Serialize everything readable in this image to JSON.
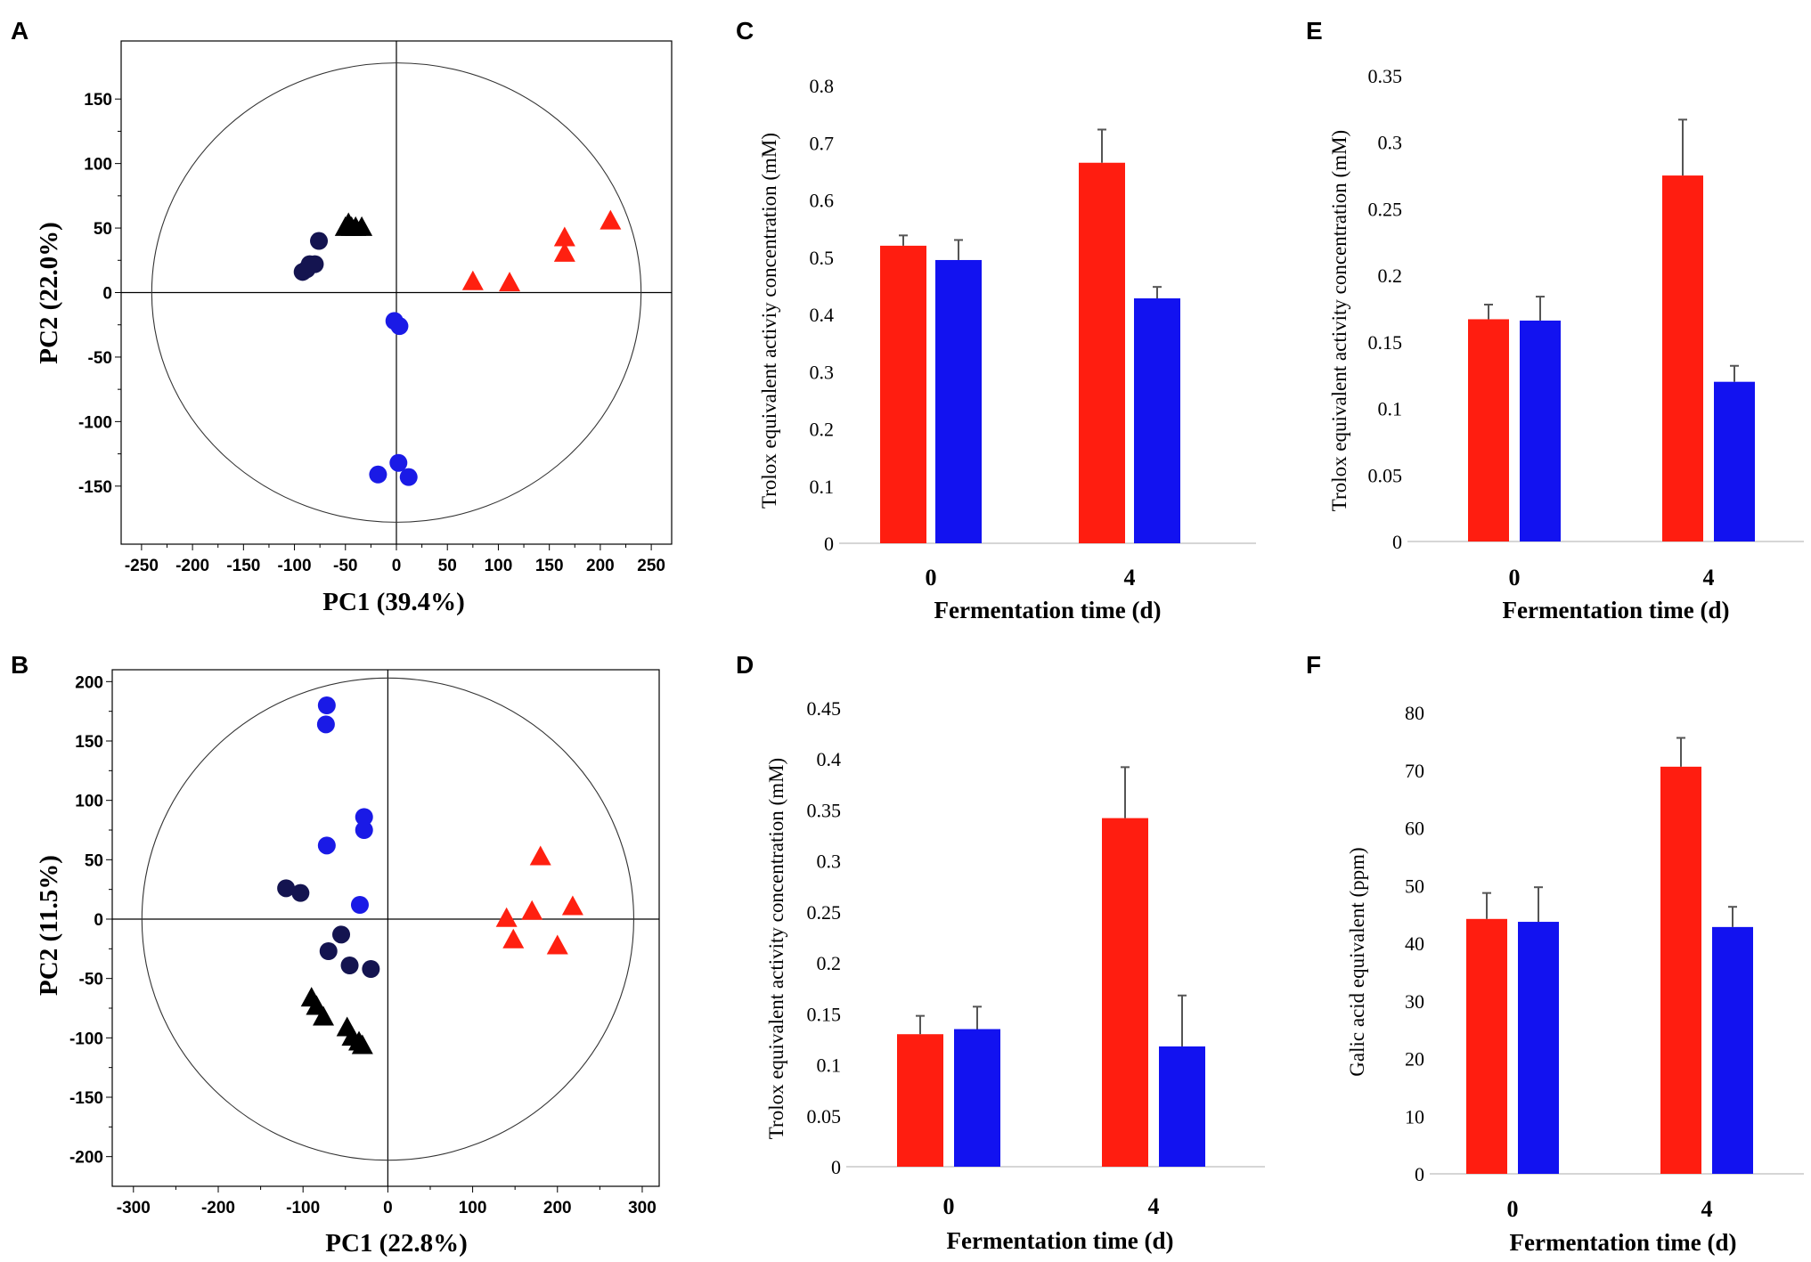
{
  "chart_data": [
    {
      "id": "A",
      "type": "scatter",
      "xlabel": "PC1 (39.4%)",
      "ylabel": "PC2 (22.0%)",
      "xlim": [
        -270,
        270
      ],
      "ylim": [
        -195,
        195
      ],
      "xticks": [
        -250,
        -200,
        -150,
        -100,
        -50,
        0,
        50,
        100,
        150,
        200,
        250
      ],
      "yticks": [
        -150,
        -100,
        -50,
        0,
        50,
        100,
        150
      ],
      "ellipse": {
        "rx": 240,
        "ry": 178
      },
      "series": [
        {
          "name": "group-dark-circles",
          "marker": "circle",
          "color": "#141450",
          "points": [
            [
              -92,
              16
            ],
            [
              -88,
              18
            ],
            [
              -85,
              22
            ],
            [
              -80,
              22
            ],
            [
              -76,
              40
            ]
          ]
        },
        {
          "name": "group-black-triangles",
          "marker": "triangle",
          "color": "#000000",
          "points": [
            [
              -50,
              50
            ],
            [
              -44,
              50
            ],
            [
              -40,
              50
            ],
            [
              -34,
              50
            ],
            [
              -47,
              53
            ]
          ]
        },
        {
          "name": "group-blue-circles",
          "marker": "circle",
          "color": "#1a1ae6",
          "points": [
            [
              -2,
              -22
            ],
            [
              3,
              -26
            ],
            [
              -18,
              -141
            ],
            [
              2,
              -132
            ],
            [
              12,
              -143
            ]
          ]
        },
        {
          "name": "group-red-triangles",
          "marker": "triangle",
          "color": "#ff2010",
          "points": [
            [
              75,
              8
            ],
            [
              111,
              7
            ],
            [
              165,
              42
            ],
            [
              165,
              30
            ],
            [
              210,
              55
            ]
          ]
        }
      ]
    },
    {
      "id": "B",
      "type": "scatter",
      "xlabel": "PC1 (22.8%)",
      "ylabel": "PC2 (11.5%)",
      "xlim": [
        -325,
        320
      ],
      "ylim": [
        -225,
        210
      ],
      "xticks": [
        -300,
        -200,
        -100,
        0,
        100,
        200,
        300
      ],
      "yticks": [
        -200,
        -150,
        -100,
        -50,
        0,
        50,
        100,
        150,
        200
      ],
      "ellipse": {
        "rx": 290,
        "ry": 203
      },
      "series": [
        {
          "name": "group-blue-circles",
          "marker": "circle",
          "color": "#1a1ae6",
          "points": [
            [
              -72,
              180
            ],
            [
              -73,
              164
            ],
            [
              -72,
              62
            ],
            [
              -28,
              86
            ],
            [
              -28,
              75
            ],
            [
              -33,
              12
            ]
          ]
        },
        {
          "name": "group-dark-circles",
          "marker": "circle",
          "color": "#141450",
          "points": [
            [
              -120,
              26
            ],
            [
              -103,
              22
            ],
            [
              -55,
              -13
            ],
            [
              -70,
              -27
            ],
            [
              -45,
              -39
            ],
            [
              -20,
              -42
            ]
          ]
        },
        {
          "name": "group-black-triangles",
          "marker": "triangle",
          "color": "#000000",
          "points": [
            [
              -90,
              -67
            ],
            [
              -84,
              -74
            ],
            [
              -76,
              -83
            ],
            [
              -48,
              -92
            ],
            [
              -42,
              -100
            ],
            [
              -34,
              -104
            ],
            [
              -30,
              -107
            ]
          ]
        },
        {
          "name": "group-red-triangles",
          "marker": "triangle",
          "color": "#ff2010",
          "points": [
            [
              140,
              0
            ],
            [
              148,
              -18
            ],
            [
              170,
              6
            ],
            [
              180,
              52
            ],
            [
              200,
              -23
            ],
            [
              218,
              10
            ]
          ]
        }
      ]
    },
    {
      "id": "C",
      "type": "bar",
      "categories": [
        "0",
        "4"
      ],
      "series": [
        {
          "name": "red",
          "color": "#ff1d10",
          "values": [
            0.52,
            0.665
          ],
          "errors": [
            0.018,
            0.058
          ]
        },
        {
          "name": "blue",
          "color": "#1212f0",
          "values": [
            0.495,
            0.428
          ],
          "errors": [
            0.035,
            0.02
          ]
        }
      ],
      "xlabel": "Fermentation time (d)",
      "ylabel": "Trolox equivalent activiy concentration (mM)",
      "ylim": [
        0,
        0.8
      ],
      "yticks": [
        "0",
        "0.1",
        "0.2",
        "0.3",
        "0.4",
        "0.5",
        "0.6",
        "0.7",
        "0.8"
      ]
    },
    {
      "id": "D",
      "type": "bar",
      "categories": [
        "0",
        "4"
      ],
      "series": [
        {
          "name": "red",
          "color": "#ff1d10",
          "values": [
            0.13,
            0.342
          ],
          "errors": [
            0.018,
            0.05
          ]
        },
        {
          "name": "blue",
          "color": "#1212f0",
          "values": [
            0.135,
            0.118
          ],
          "errors": [
            0.022,
            0.05
          ]
        }
      ],
      "xlabel": "Fermentation time (d)",
      "ylabel": "Trolox equivalent activity  concentration (mM)",
      "ylim": [
        0,
        0.45
      ],
      "yticks": [
        "0",
        "0.05",
        "0.1",
        "0.15",
        "0.2",
        "0.25",
        "0.3",
        "0.35",
        "0.4",
        "0.45"
      ]
    },
    {
      "id": "E",
      "type": "bar",
      "categories": [
        "0",
        "4"
      ],
      "series": [
        {
          "name": "red",
          "color": "#ff1d10",
          "values": [
            0.167,
            0.275
          ],
          "errors": [
            0.011,
            0.042
          ]
        },
        {
          "name": "blue",
          "color": "#1212f0",
          "values": [
            0.166,
            0.12
          ],
          "errors": [
            0.018,
            0.012
          ]
        }
      ],
      "xlabel": "Fermentation time (d)",
      "ylabel": "Trolox equivalent activity concentration (mM)",
      "ylim": [
        0,
        0.35
      ],
      "yticks": [
        "0",
        "0.05",
        "0.1",
        "0.15",
        "0.2",
        "0.25",
        "0.3",
        "0.35"
      ]
    },
    {
      "id": "F",
      "type": "bar",
      "categories": [
        "0",
        "4"
      ],
      "series": [
        {
          "name": "red",
          "color": "#ff1d10",
          "values": [
            44.2,
            70.6
          ],
          "errors": [
            4.5,
            5.0
          ]
        },
        {
          "name": "blue",
          "color": "#1212f0",
          "values": [
            43.7,
            42.8
          ],
          "errors": [
            6.0,
            3.5
          ]
        }
      ],
      "xlabel": "Fermentation time (d)",
      "ylabel": "Galic acid  equivalent (ppm)",
      "ylim": [
        0,
        80
      ],
      "yticks": [
        "0",
        "10",
        "20",
        "30",
        "40",
        "50",
        "60",
        "70",
        "80"
      ]
    }
  ]
}
